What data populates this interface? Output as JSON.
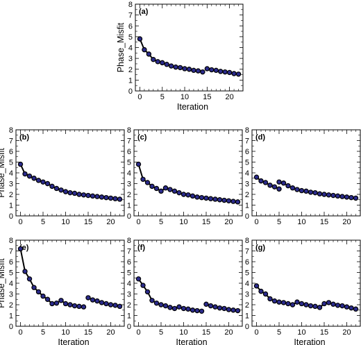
{
  "chart_data": [
    {
      "type": "line",
      "label": "(a)",
      "xlabel": "Iteration",
      "ylabel": "Phase_Misfit",
      "xlim": [
        -1,
        23
      ],
      "ylim": [
        0,
        8
      ],
      "xticks": [
        "0",
        "5",
        "10",
        "15",
        "20"
      ],
      "yticks": [
        "0",
        "1",
        "2",
        "3",
        "4",
        "5",
        "6",
        "7",
        "8"
      ],
      "series": [
        {
          "color": "#2b2b8c",
          "segments": [
            {
              "x": [
                0,
                1,
                2,
                3,
                4,
                5,
                6,
                7,
                8,
                9,
                10,
                11,
                12,
                13,
                14
              ],
              "y": [
                4.8,
                3.8,
                3.4,
                2.9,
                2.7,
                2.6,
                2.45,
                2.3,
                2.2,
                2.15,
                2.05,
                2.0,
                1.9,
                1.85,
                1.75
              ]
            },
            {
              "x": [
                15,
                16,
                17,
                18,
                19,
                20,
                21,
                22
              ],
              "y": [
                2.05,
                1.95,
                1.9,
                1.8,
                1.75,
                1.7,
                1.6,
                1.55
              ]
            }
          ]
        }
      ]
    },
    {
      "type": "line",
      "label": "(b)",
      "xlabel": "",
      "ylabel": "Phase_Misfit",
      "xlim": [
        -1,
        23
      ],
      "ylim": [
        0,
        8
      ],
      "xticks": [
        "0",
        "5",
        "10",
        "15",
        "20"
      ],
      "yticks": [
        "0",
        "1",
        "2",
        "3",
        "4",
        "5",
        "6",
        "7",
        "8"
      ],
      "series": [
        {
          "color": "#2b2b8c",
          "segments": [
            {
              "x": [
                0,
                1,
                2,
                3,
                4,
                5,
                6,
                7,
                8,
                9,
                10,
                11,
                12,
                13,
                14,
                15,
                16,
                17,
                18,
                19,
                20,
                21,
                22
              ],
              "y": [
                4.8,
                3.9,
                3.7,
                3.5,
                3.3,
                3.15,
                3.0,
                2.75,
                2.55,
                2.4,
                2.25,
                2.15,
                2.1,
                2.0,
                1.95,
                1.9,
                1.85,
                1.8,
                1.75,
                1.7,
                1.65,
                1.6,
                1.55
              ]
            }
          ]
        }
      ]
    },
    {
      "type": "line",
      "label": "(c)",
      "xlabel": "",
      "ylabel": "",
      "xlim": [
        -1,
        23
      ],
      "ylim": [
        0,
        8
      ],
      "xticks": [
        "0",
        "5",
        "10",
        "15",
        "20"
      ],
      "yticks": [
        "0",
        "1",
        "2",
        "3",
        "4",
        "5",
        "6",
        "7",
        "8"
      ],
      "series": [
        {
          "color": "#2b2b8c",
          "segments": [
            {
              "x": [
                0,
                1,
                2,
                3,
                4,
                5,
                6,
                7,
                8,
                9,
                10,
                11,
                12,
                13,
                14,
                15,
                16,
                17,
                18,
                19,
                20,
                21,
                22
              ],
              "y": [
                4.8,
                3.4,
                3.1,
                2.75,
                2.55,
                2.3,
                2.6,
                2.45,
                2.3,
                2.15,
                2.0,
                1.95,
                1.85,
                1.75,
                1.7,
                1.65,
                1.6,
                1.55,
                1.5,
                1.45,
                1.4,
                1.35,
                1.3
              ]
            }
          ]
        }
      ]
    },
    {
      "type": "line",
      "label": "(d)",
      "xlabel": "",
      "ylabel": "",
      "xlim": [
        -1,
        23
      ],
      "ylim": [
        0,
        8
      ],
      "xticks": [
        "0",
        "5",
        "10",
        "15",
        "20"
      ],
      "yticks": [
        "0",
        "1",
        "2",
        "3",
        "4",
        "5",
        "6",
        "7",
        "8"
      ],
      "series": [
        {
          "color": "#2b2b8c",
          "segments": [
            {
              "x": [
                0,
                1,
                2,
                3,
                4,
                5
              ],
              "y": [
                3.6,
                3.25,
                3.1,
                2.85,
                2.7,
                2.5
              ]
            },
            {
              "x": [
                5,
                6,
                7,
                8,
                9,
                10,
                11,
                12,
                13,
                14,
                15,
                16,
                17,
                18,
                19,
                20,
                21,
                22
              ],
              "y": [
                3.15,
                3.05,
                2.8,
                2.6,
                2.45,
                2.35,
                2.3,
                2.2,
                2.15,
                2.05,
                2.0,
                1.95,
                1.9,
                1.85,
                1.8,
                1.75,
                1.7,
                1.65
              ]
            }
          ]
        }
      ]
    },
    {
      "type": "line",
      "label": "(e)",
      "xlabel": "Iteration",
      "ylabel": "Phase_Misfit",
      "xlim": [
        -1,
        23
      ],
      "ylim": [
        0,
        8
      ],
      "xticks": [
        "0",
        "5",
        "10",
        "15",
        "20"
      ],
      "yticks": [
        "0",
        "1",
        "2",
        "3",
        "4",
        "5",
        "6",
        "7",
        "8"
      ],
      "series": [
        {
          "color": "#2b2b8c",
          "segments": [
            {
              "x": [
                0,
                1,
                2,
                3,
                4,
                5,
                6,
                7,
                8,
                9,
                10,
                11,
                12,
                13,
                14
              ],
              "y": [
                7.2,
                5.1,
                4.4,
                3.6,
                3.2,
                2.8,
                2.5,
                2.1,
                2.15,
                2.4,
                2.1,
                2.0,
                1.9,
                1.85,
                1.8
              ]
            },
            {
              "x": [
                15,
                16,
                17,
                18,
                19,
                20,
                21,
                22
              ],
              "y": [
                2.65,
                2.45,
                2.35,
                2.2,
                2.1,
                2.0,
                1.95,
                1.85
              ]
            }
          ]
        }
      ]
    },
    {
      "type": "line",
      "label": "(f)",
      "xlabel": "Iteration",
      "ylabel": "",
      "xlim": [
        -1,
        23
      ],
      "ylim": [
        0,
        8
      ],
      "xticks": [
        "0",
        "5",
        "10",
        "15",
        "20"
      ],
      "yticks": [
        "0",
        "1",
        "2",
        "3",
        "4",
        "5",
        "6",
        "7",
        "8"
      ],
      "series": [
        {
          "color": "#2b2b8c",
          "segments": [
            {
              "x": [
                0,
                1,
                2,
                3,
                4,
                5,
                6,
                7,
                8,
                9,
                10,
                11,
                12,
                13,
                14
              ],
              "y": [
                4.4,
                3.8,
                3.2,
                2.4,
                2.15,
                2.0,
                1.9,
                1.75,
                1.65,
                1.8,
                1.65,
                1.6,
                1.5,
                1.45,
                1.4
              ]
            },
            {
              "x": [
                15,
                16,
                17,
                18,
                19,
                20,
                21,
                22
              ],
              "y": [
                2.05,
                1.9,
                1.8,
                1.7,
                1.65,
                1.55,
                1.5,
                1.45
              ]
            }
          ]
        }
      ]
    },
    {
      "type": "line",
      "label": "(g)",
      "xlabel": "Iteration",
      "ylabel": "",
      "xlim": [
        -1,
        23
      ],
      "ylim": [
        0,
        8
      ],
      "xticks": [
        "0",
        "5",
        "10",
        "15",
        "20"
      ],
      "yticks": [
        "0",
        "1",
        "2",
        "3",
        "4",
        "5",
        "6",
        "7",
        "8"
      ],
      "series": [
        {
          "color": "#2b2b8c",
          "segments": [
            {
              "x": [
                0,
                1,
                2,
                3,
                4,
                5,
                6,
                7,
                8,
                9,
                10,
                11,
                12,
                13,
                14,
                15,
                16,
                17,
                18,
                19,
                20,
                21,
                22
              ],
              "y": [
                3.75,
                3.25,
                3.0,
                2.55,
                2.35,
                2.25,
                2.2,
                2.1,
                2.0,
                2.25,
                2.1,
                2.0,
                1.9,
                1.85,
                1.75,
                2.1,
                2.2,
                2.05,
                1.95,
                1.9,
                1.8,
                1.7,
                1.6
              ]
            }
          ]
        }
      ]
    }
  ]
}
